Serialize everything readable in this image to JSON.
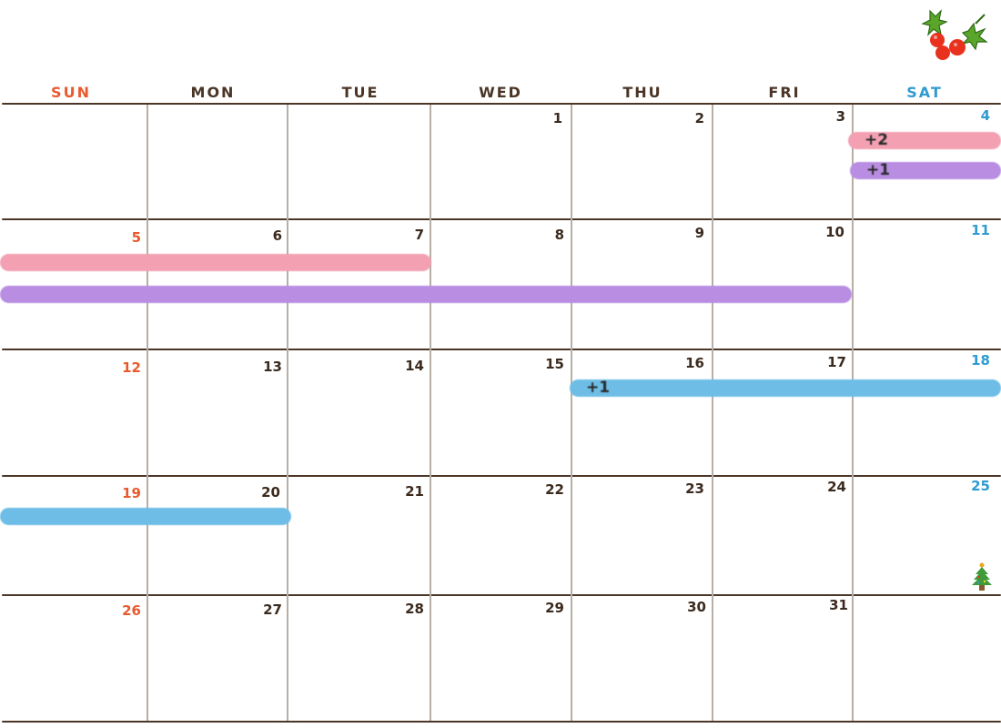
{
  "weekdays": [
    "SUN",
    "MON",
    "TUE",
    "WED",
    "THU",
    "FRI",
    "SAT"
  ],
  "weeks": [
    [
      "",
      "",
      "",
      "1",
      "2",
      "3",
      "4"
    ],
    [
      "5",
      "6",
      "7",
      "8",
      "9",
      "10",
      "11"
    ],
    [
      "12",
      "13",
      "14",
      "15",
      "16",
      "17",
      "18"
    ],
    [
      "19",
      "20",
      "21",
      "22",
      "23",
      "24",
      "25"
    ],
    [
      "26",
      "27",
      "28",
      "29",
      "30",
      "31",
      ""
    ]
  ],
  "events": {
    "sat4_pink": "+2",
    "sat4_purple": "+1",
    "week3_blue": "+1"
  },
  "colors": {
    "sunday": "#e85a2e",
    "saturday": "#2f9bd1",
    "text": "#3b2a1e",
    "event_pink": "#f3a0b2",
    "event_purple": "#b88de2",
    "event_blue": "#6dbde6"
  },
  "decorations": [
    "holly-berries-icon",
    "christmas-tree-icon"
  ]
}
